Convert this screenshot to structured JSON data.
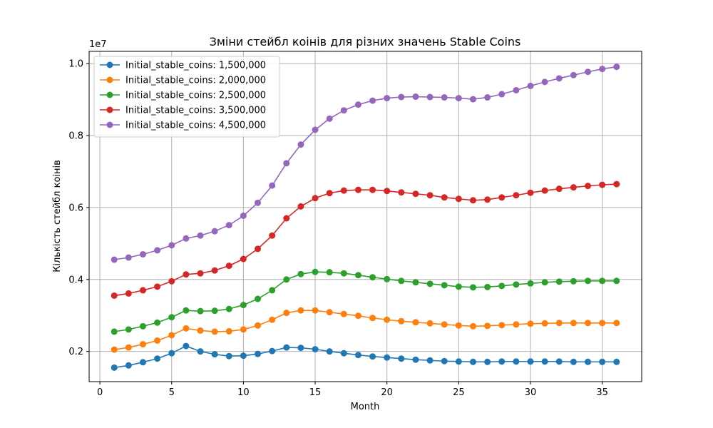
{
  "chart_data": {
    "type": "line",
    "title": "Зміни стейбл коінів для різних значень Stable Coins",
    "xlabel": "Month",
    "ylabel": "Кількість стейбл коінів",
    "y_offset_label": "1e7",
    "xlim": [
      -0.75,
      37.75
    ],
    "ylim": [
      0.116,
      1.034
    ],
    "x_ticks": [
      0,
      5,
      10,
      15,
      20,
      25,
      30,
      35
    ],
    "x_tick_labels": [
      "0",
      "5",
      "10",
      "15",
      "20",
      "25",
      "30",
      "35"
    ],
    "y_ticks": [
      0.2,
      0.4,
      0.6,
      0.8,
      1.0
    ],
    "y_tick_labels": [
      "0.2",
      "0.4",
      "0.6",
      "0.8",
      "1.0"
    ],
    "grid": true,
    "legend_position": "upper-left",
    "x": [
      1,
      2,
      3,
      4,
      5,
      6,
      7,
      8,
      9,
      10,
      11,
      12,
      13,
      14,
      15,
      16,
      17,
      18,
      19,
      20,
      21,
      22,
      23,
      24,
      25,
      26,
      27,
      28,
      29,
      30,
      31,
      32,
      33,
      34,
      35,
      36
    ],
    "series": [
      {
        "name": "Initial_stable_coins: 1,500,000",
        "color": "#1f77b4",
        "values": [
          0.155,
          0.161,
          0.17,
          0.18,
          0.195,
          0.215,
          0.2,
          0.192,
          0.187,
          0.188,
          0.193,
          0.201,
          0.211,
          0.21,
          0.206,
          0.2,
          0.195,
          0.19,
          0.186,
          0.183,
          0.18,
          0.177,
          0.175,
          0.173,
          0.172,
          0.171,
          0.171,
          0.172,
          0.172,
          0.172,
          0.172,
          0.172,
          0.171,
          0.171,
          0.171,
          0.171
        ]
      },
      {
        "name": "Initial_stable_coins: 2,000,000",
        "color": "#ff7f0e",
        "values": [
          0.205,
          0.211,
          0.22,
          0.23,
          0.245,
          0.264,
          0.258,
          0.255,
          0.256,
          0.261,
          0.272,
          0.288,
          0.307,
          0.314,
          0.314,
          0.309,
          0.304,
          0.299,
          0.293,
          0.288,
          0.284,
          0.281,
          0.278,
          0.275,
          0.272,
          0.27,
          0.271,
          0.273,
          0.275,
          0.277,
          0.278,
          0.279,
          0.279,
          0.279,
          0.279,
          0.279
        ]
      },
      {
        "name": "Initial_stable_coins: 2,500,000",
        "color": "#2ca02c",
        "values": [
          0.255,
          0.261,
          0.27,
          0.28,
          0.295,
          0.314,
          0.312,
          0.313,
          0.318,
          0.329,
          0.346,
          0.37,
          0.4,
          0.415,
          0.421,
          0.42,
          0.417,
          0.412,
          0.406,
          0.401,
          0.396,
          0.392,
          0.388,
          0.384,
          0.38,
          0.378,
          0.379,
          0.382,
          0.386,
          0.389,
          0.392,
          0.394,
          0.395,
          0.396,
          0.396,
          0.396
        ]
      },
      {
        "name": "Initial_stable_coins: 3,500,000",
        "color": "#d62728",
        "values": [
          0.355,
          0.361,
          0.37,
          0.38,
          0.395,
          0.414,
          0.417,
          0.425,
          0.438,
          0.457,
          0.485,
          0.522,
          0.57,
          0.603,
          0.626,
          0.64,
          0.647,
          0.649,
          0.649,
          0.646,
          0.642,
          0.638,
          0.634,
          0.628,
          0.624,
          0.62,
          0.622,
          0.628,
          0.634,
          0.641,
          0.647,
          0.652,
          0.656,
          0.66,
          0.663,
          0.665
        ]
      },
      {
        "name": "Initial_stable_coins: 4,500,000",
        "color": "#9467bd",
        "values": [
          0.455,
          0.461,
          0.47,
          0.481,
          0.495,
          0.514,
          0.522,
          0.534,
          0.551,
          0.577,
          0.613,
          0.661,
          0.723,
          0.775,
          0.816,
          0.847,
          0.87,
          0.886,
          0.897,
          0.904,
          0.907,
          0.908,
          0.907,
          0.906,
          0.904,
          0.901,
          0.906,
          0.915,
          0.926,
          0.938,
          0.949,
          0.959,
          0.968,
          0.977,
          0.985,
          0.991
        ]
      }
    ]
  }
}
